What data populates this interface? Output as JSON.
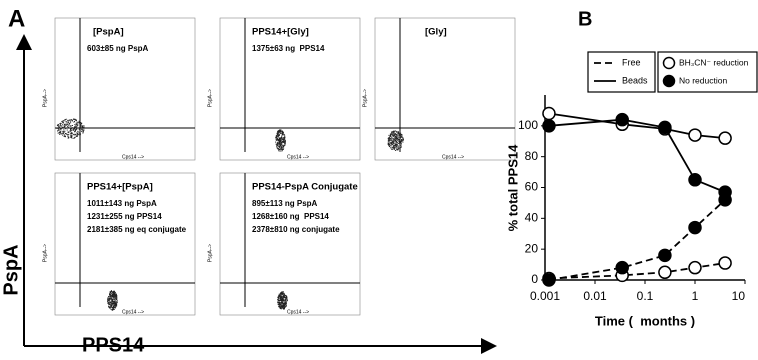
{
  "panel_a": {
    "label": "A",
    "x_axis_label": "PPS14",
    "y_axis_label": "PspA",
    "plots": [
      {
        "title": "[PspA]",
        "lines": [
          "603±85 ng PspA"
        ],
        "x_label": "Cps14 -->",
        "y_label": "PspA-->"
      },
      {
        "title": "PPS14+[Gly]",
        "lines": [
          "1375±63 ng  PPS14"
        ],
        "x_label": "Cps14 -->",
        "y_label": "PspA-->"
      },
      {
        "title": "[Gly]",
        "lines": [],
        "x_label": "Cps14 -->",
        "y_label": "PspA-->"
      },
      {
        "title": "PPS14+[PspA]",
        "lines": [
          "1011±143 ng PspA",
          "1231±255 ng PPS14",
          "2181±385 ng eq conjugate"
        ],
        "x_label": "Cps14 -->",
        "y_label": "PspA-->"
      },
      {
        "title": "PPS14-PspA Conjugate",
        "lines": [
          "895±113 ng PspA",
          "1268±160 ng  PPS14",
          "2378±810 ng conjugate"
        ],
        "x_label": "Cps14 -->",
        "y_label": "PspA-->"
      }
    ]
  },
  "chart_data": {
    "type": "line",
    "panel_label": "B",
    "x_label": "Time (  months )",
    "y_label": "% total PPS14",
    "x_scale": "log",
    "xlim": [
      0.001,
      10
    ],
    "xticks": [
      0.001,
      0.01,
      0.1,
      1,
      10
    ],
    "ylim": [
      0,
      120
    ],
    "yticks": [
      0,
      20,
      40,
      60,
      80,
      100
    ],
    "line_legend": [
      {
        "label": "Free",
        "line_style": "dashed"
      },
      {
        "label": "Beads",
        "line_style": "solid"
      }
    ],
    "marker_legend": [
      {
        "label": "BH₃CN⁻ reduction",
        "marker": "open"
      },
      {
        "label": "No reduction",
        "marker": "filled"
      }
    ],
    "series": [
      {
        "line_style": "solid",
        "marker": "open",
        "color": "#000000",
        "x": [
          0.0012,
          0.035,
          0.25,
          1,
          4
        ],
        "values": [
          108,
          101,
          98,
          94,
          92
        ]
      },
      {
        "line_style": "solid",
        "marker": "filled",
        "color": "#000000",
        "x": [
          0.0012,
          0.035,
          0.25,
          1,
          4
        ],
        "values": [
          100,
          104,
          99,
          65,
          57
        ]
      },
      {
        "line_style": "dashed",
        "marker": "open",
        "color": "#000000",
        "x": [
          0.0012,
          0.035,
          0.25,
          1,
          4
        ],
        "values": [
          1,
          3,
          5,
          8,
          11
        ]
      },
      {
        "line_style": "dashed",
        "marker": "filled",
        "color": "#000000",
        "x": [
          0.0012,
          0.035,
          0.25,
          1,
          4
        ],
        "values": [
          0,
          8,
          16,
          34,
          52
        ]
      }
    ]
  }
}
